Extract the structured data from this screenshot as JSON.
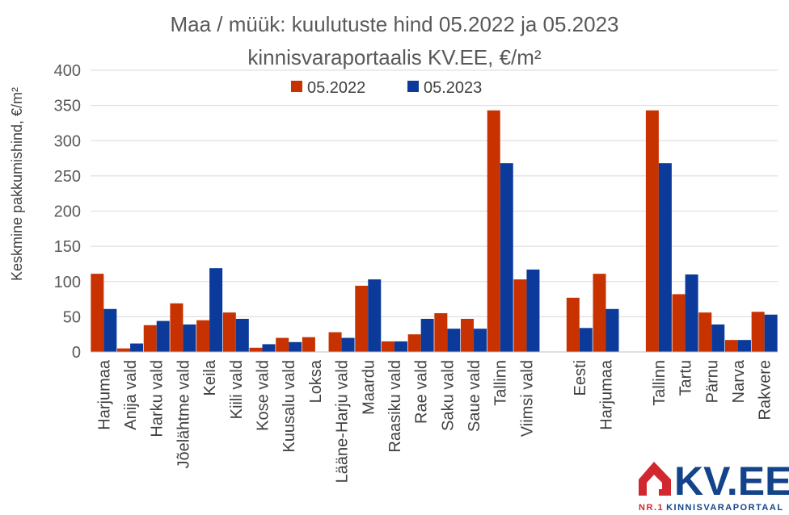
{
  "chart_data": {
    "type": "bar",
    "title": "Maa / müük: kuulutuste hind 05.2022 ja 05.2023",
    "subtitle": "kinnisvaraportaalis KV.EE, €/m²",
    "ylabel": "Keskmine pakkumishind, €/m²",
    "xlabel": "",
    "ylim": [
      0,
      400
    ],
    "yticks": [
      0,
      50,
      100,
      150,
      200,
      250,
      300,
      350,
      400
    ],
    "grid": true,
    "legend_position": "top",
    "categories": [
      "Harjumaa",
      "Anija vald",
      "Harku vald",
      "Jõelähtme vald",
      "Keila",
      "Kiili vald",
      "Kose vald",
      "Kuusalu vald",
      "Loksa",
      "Lääne-Harju vald",
      "Maardu",
      "Raasiku vald",
      "Rae vald",
      "Saku vald",
      "Saue vald",
      "Tallinn",
      "Viimsi vald",
      "",
      "Eesti",
      "Harjumaa",
      "",
      "Tallinn",
      "Tartu",
      "Pärnu",
      "Narva",
      "Rakvere"
    ],
    "series": [
      {
        "name": "05.2022",
        "color": "#c83200",
        "values": [
          111,
          5,
          38,
          69,
          45,
          56,
          6,
          20,
          21,
          28,
          94,
          15,
          25,
          55,
          47,
          343,
          103,
          null,
          77,
          111,
          null,
          343,
          82,
          56,
          17,
          57
        ]
      },
      {
        "name": "05.2023",
        "color": "#0b3a9b",
        "values": [
          61,
          12,
          44,
          39,
          119,
          47,
          11,
          14,
          null,
          20,
          103,
          15,
          47,
          33,
          33,
          268,
          117,
          null,
          34,
          61,
          null,
          268,
          110,
          39,
          17,
          53
        ]
      }
    ]
  },
  "logo": {
    "name": "KV.EE",
    "tagline_prefix": "NR.1",
    "tagline_main": "KINNISVARAPORTAAL",
    "red": "#d0282e",
    "blue": "#13438a"
  }
}
